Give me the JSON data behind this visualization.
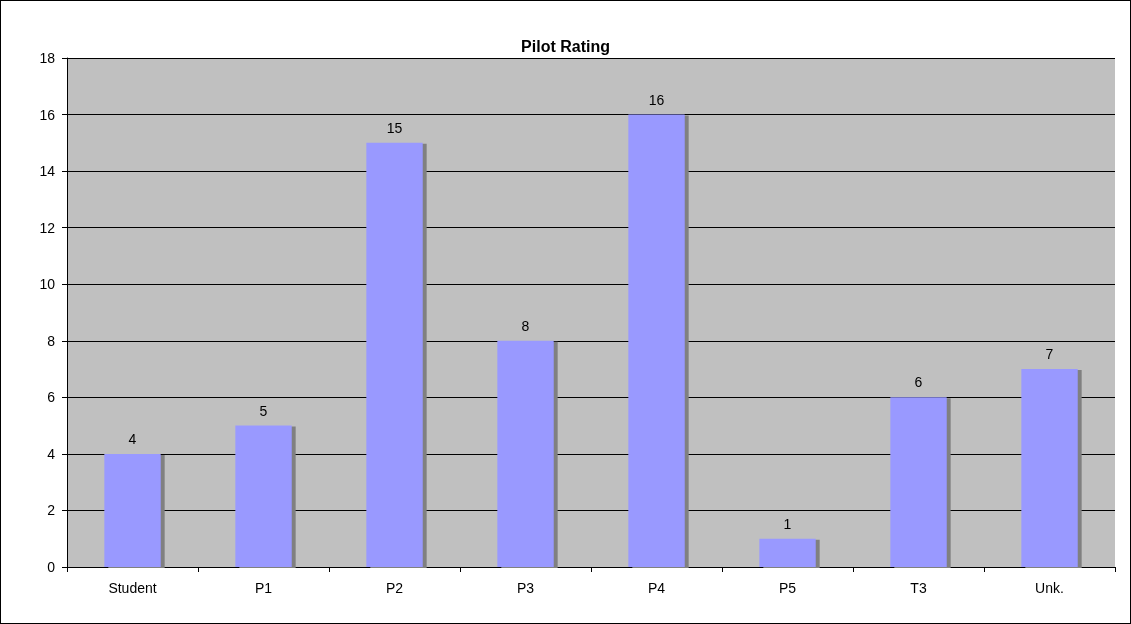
{
  "chart_data": {
    "type": "bar",
    "title": "Pilot Rating",
    "categories": [
      "Student",
      "P1",
      "P2",
      "P3",
      "P4",
      "P5",
      "T3",
      "Unk."
    ],
    "values": [
      4,
      5,
      15,
      8,
      16,
      1,
      6,
      7
    ],
    "color": "#9999ff",
    "ylim": [
      0,
      18
    ],
    "yticks": [
      0,
      2,
      4,
      6,
      8,
      10,
      12,
      14,
      16,
      18
    ],
    "grid": "y",
    "data_labels": true
  }
}
